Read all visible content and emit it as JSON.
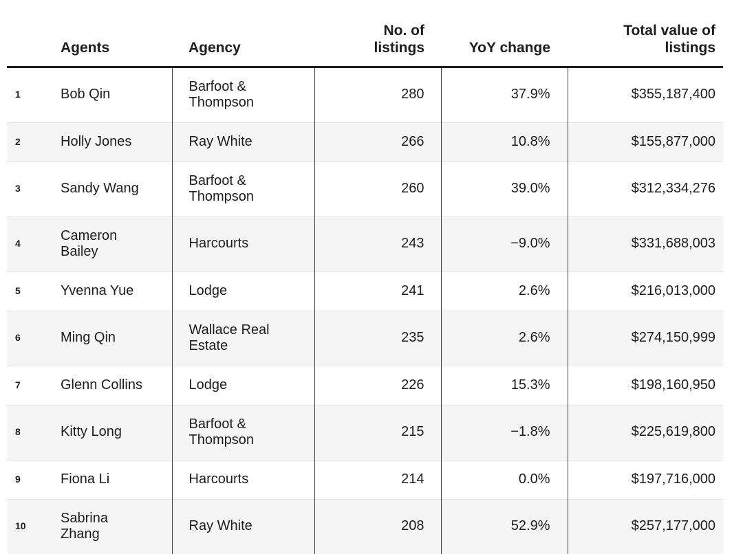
{
  "chart_data": {
    "type": "table",
    "columns": [
      {
        "key": "rank",
        "label": ""
      },
      {
        "key": "agent",
        "label": "Agents"
      },
      {
        "key": "agency",
        "label": "Agency"
      },
      {
        "key": "listings",
        "label": "No. of listings"
      },
      {
        "key": "yoy",
        "label": "YoY change"
      },
      {
        "key": "total",
        "label": "Total value of listings"
      }
    ],
    "rows": [
      {
        "rank": "1",
        "agent": "Bob Qin",
        "agency": "Barfoot & Thompson",
        "listings": "280",
        "yoy": "37.9%",
        "total": "$355,187,400"
      },
      {
        "rank": "2",
        "agent": "Holly Jones",
        "agency": "Ray White",
        "listings": "266",
        "yoy": "10.8%",
        "total": "$155,877,000"
      },
      {
        "rank": "3",
        "agent": "Sandy Wang",
        "agency": "Barfoot & Thompson",
        "listings": "260",
        "yoy": "39.0%",
        "total": "$312,334,276"
      },
      {
        "rank": "4",
        "agent": "Cameron Bailey",
        "agency": "Harcourts",
        "listings": "243",
        "yoy": "−9.0%",
        "total": "$331,688,003"
      },
      {
        "rank": "5",
        "agent": "Yvenna Yue",
        "agency": "Lodge",
        "listings": "241",
        "yoy": "2.6%",
        "total": "$216,013,000"
      },
      {
        "rank": "6",
        "agent": "Ming Qin",
        "agency": "Wallace Real Estate",
        "listings": "235",
        "yoy": "2.6%",
        "total": "$274,150,999"
      },
      {
        "rank": "7",
        "agent": "Glenn Collins",
        "agency": "Lodge",
        "listings": "226",
        "yoy": "15.3%",
        "total": "$198,160,950"
      },
      {
        "rank": "8",
        "agent": "Kitty Long",
        "agency": "Barfoot & Thompson",
        "listings": "215",
        "yoy": "−1.8%",
        "total": "$225,619,800"
      },
      {
        "rank": "9",
        "agent": "Fiona Li",
        "agency": "Harcourts",
        "listings": "214",
        "yoy": "0.0%",
        "total": "$197,716,000"
      },
      {
        "rank": "10",
        "agent": "Sabrina Zhang",
        "agency": "Ray White",
        "listings": "208",
        "yoy": "52.9%",
        "total": "$257,177,000"
      }
    ]
  },
  "colors": {
    "text": "#1d1d1d",
    "header_rule": "#1f1f1f",
    "column_divider": "#3f3f3f",
    "row_divider": "#e3e3e3",
    "row_alt_background": "#f5f5f5",
    "row_background": "#ffffff"
  }
}
